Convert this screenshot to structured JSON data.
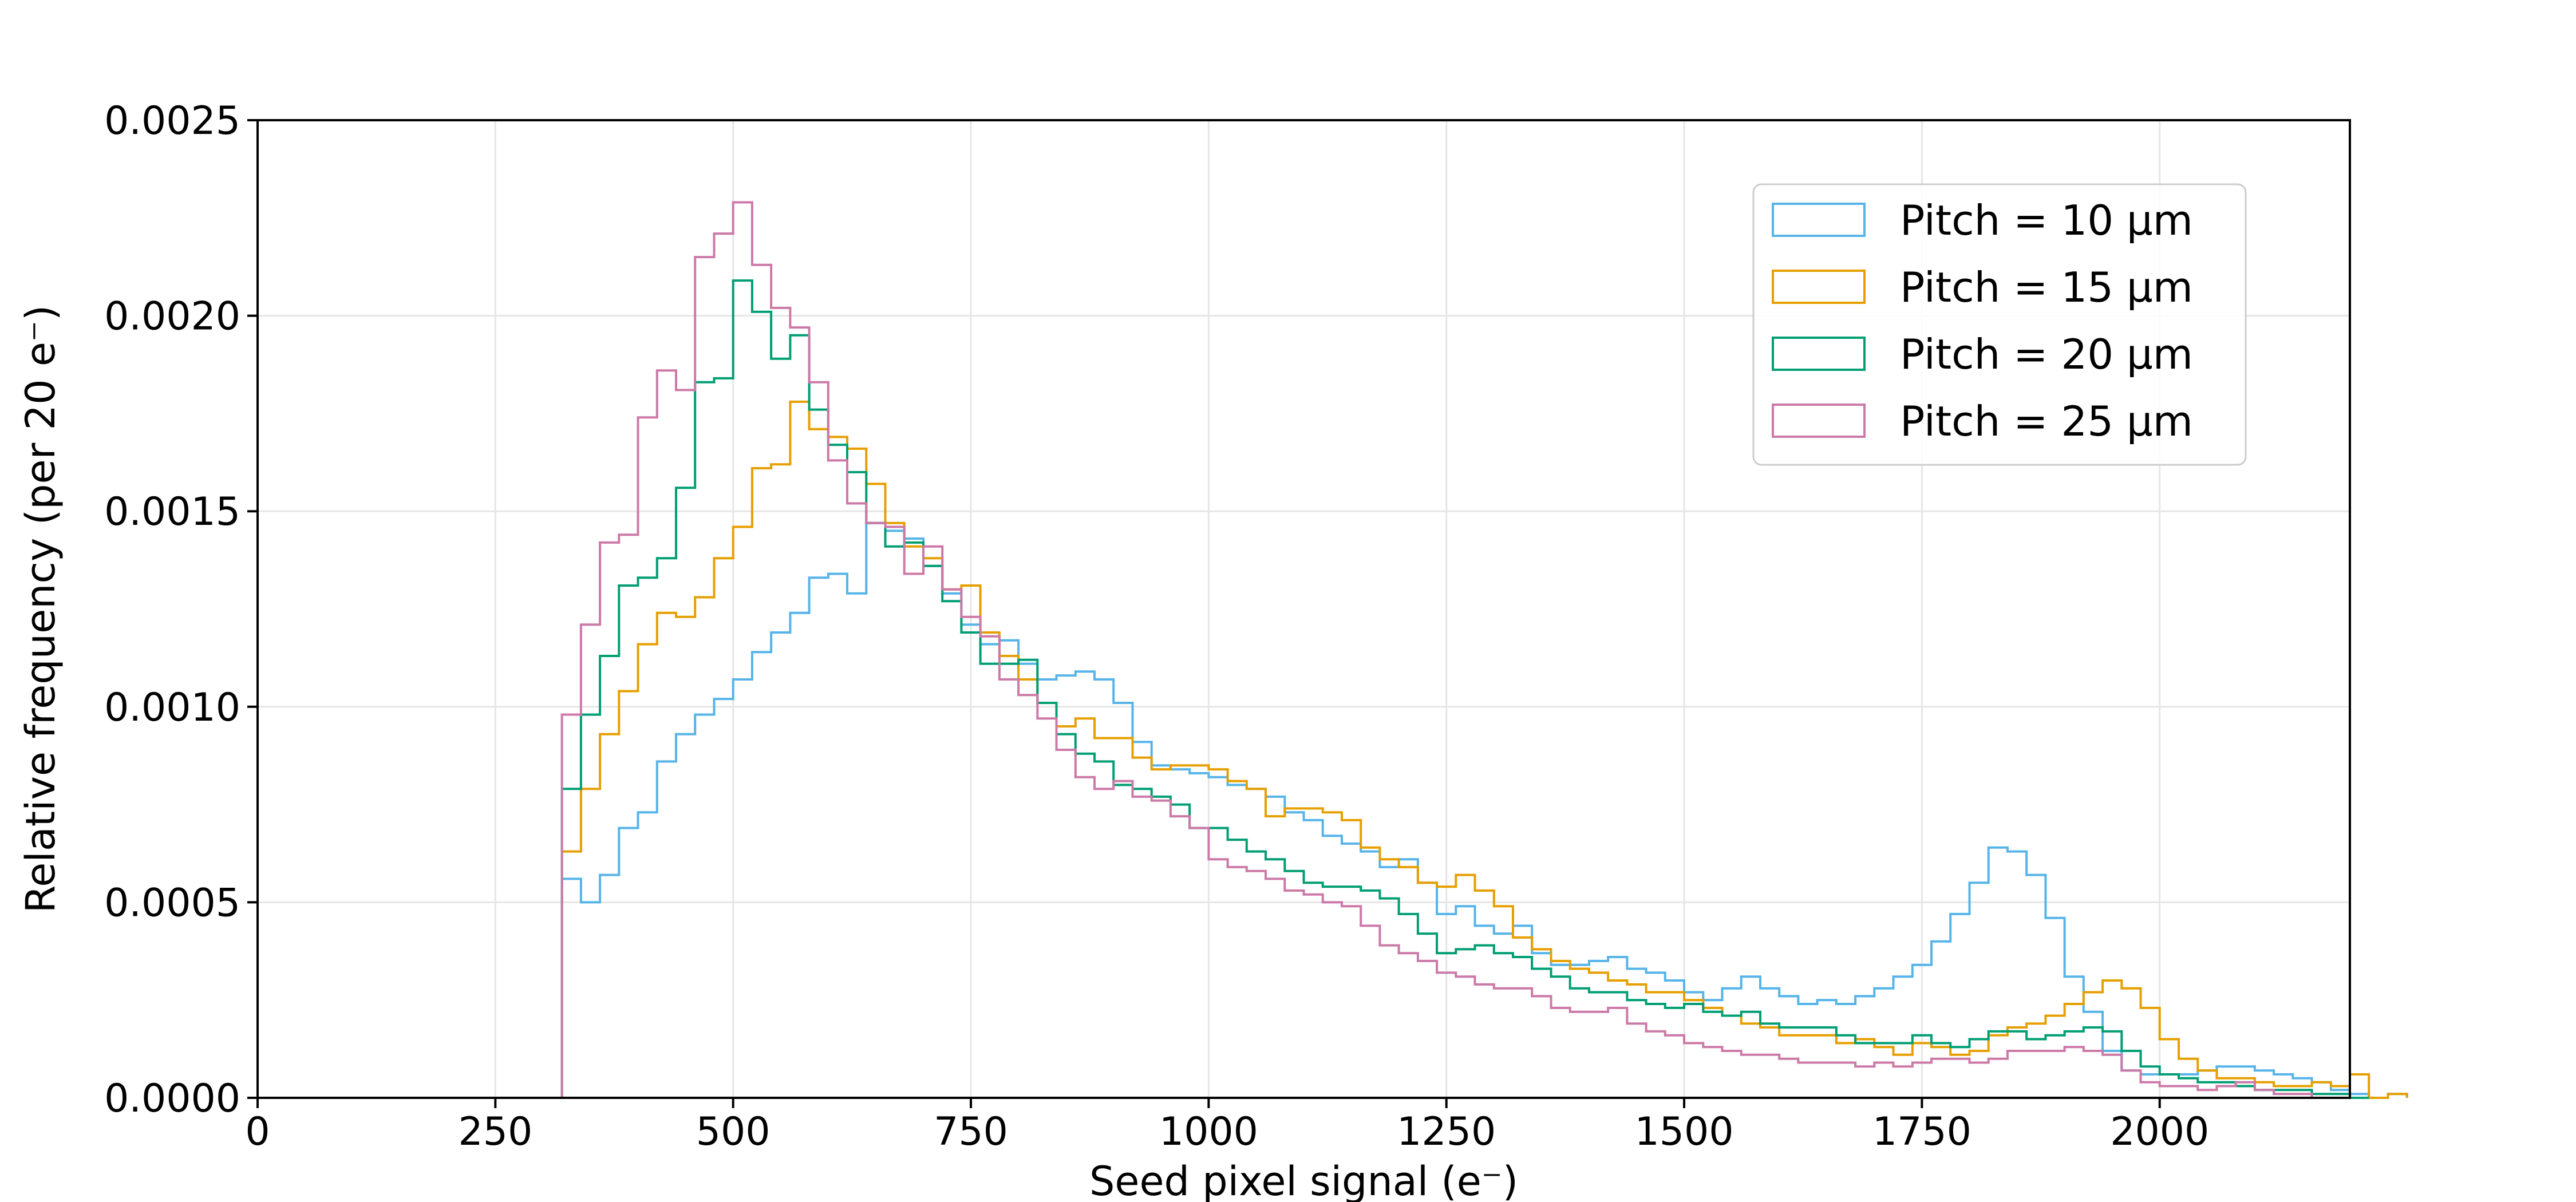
{
  "chart_data": {
    "type": "histogram",
    "xlabel": "Seed pixel signal (e⁻)",
    "ylabel": "Relative frequency (per 20 e⁻)",
    "xlim": [
      0,
      2200
    ],
    "ylim": [
      0,
      0.0025
    ],
    "xticks": [
      "0",
      "250",
      "500",
      "750",
      "1000",
      "1250",
      "1500",
      "1750",
      "2000"
    ],
    "yticks": [
      "0.0000",
      "0.0005",
      "0.0010",
      "0.0015",
      "0.0020",
      "0.0025"
    ],
    "grid": true,
    "legend_position": "top-right",
    "bin_width": 20,
    "bin_start": 320,
    "series": [
      {
        "name": "Pitch = 10 µm",
        "color": "#56b4e9",
        "values": [
          0.00056,
          0.0005,
          0.00057,
          0.00069,
          0.00073,
          0.00086,
          0.00093,
          0.00098,
          0.00102,
          0.00107,
          0.00114,
          0.00119,
          0.00124,
          0.00133,
          0.00134,
          0.00129,
          0.00147,
          0.00145,
          0.00143,
          0.00136,
          0.00129,
          0.00121,
          0.00116,
          0.00117,
          0.00111,
          0.00107,
          0.00108,
          0.00109,
          0.00107,
          0.00101,
          0.00091,
          0.00085,
          0.00084,
          0.00083,
          0.00082,
          0.0008,
          0.00079,
          0.00077,
          0.00073,
          0.00071,
          0.00067,
          0.00065,
          0.00063,
          0.00059,
          0.00061,
          0.00055,
          0.00047,
          0.00049,
          0.00044,
          0.00042,
          0.00044,
          0.00037,
          0.00034,
          0.00034,
          0.00035,
          0.00036,
          0.00033,
          0.00032,
          0.0003,
          0.00027,
          0.00025,
          0.00028,
          0.00031,
          0.00028,
          0.00026,
          0.00024,
          0.00025,
          0.00024,
          0.00026,
          0.00028,
          0.00031,
          0.00034,
          0.0004,
          0.00047,
          0.00055,
          0.00064,
          0.00063,
          0.00057,
          0.00046,
          0.00031,
          0.00022,
          0.00012,
          7e-05,
          6e-05,
          6e-05,
          6e-05,
          7e-05,
          8e-05,
          8e-05,
          7e-05,
          6e-05,
          5e-05,
          4e-05,
          2e-05,
          1e-05,
          0.0
        ],
        "tail": 1e-05
      },
      {
        "name": "Pitch = 15 µm",
        "color": "#e69f00",
        "values": [
          0.00063,
          0.00079,
          0.00093,
          0.00104,
          0.00116,
          0.00124,
          0.00123,
          0.00128,
          0.00138,
          0.00146,
          0.00161,
          0.00162,
          0.00178,
          0.00171,
          0.00169,
          0.00166,
          0.00157,
          0.00147,
          0.00141,
          0.00138,
          0.0013,
          0.00131,
          0.00119,
          0.00113,
          0.00107,
          0.00101,
          0.00095,
          0.00097,
          0.00092,
          0.00092,
          0.00087,
          0.00084,
          0.00085,
          0.00085,
          0.00084,
          0.00081,
          0.00079,
          0.00072,
          0.00074,
          0.00074,
          0.00073,
          0.00071,
          0.00064,
          0.00061,
          0.00059,
          0.00055,
          0.00054,
          0.00057,
          0.00053,
          0.00049,
          0.00041,
          0.00038,
          0.00035,
          0.00033,
          0.00032,
          0.0003,
          0.00029,
          0.00027,
          0.00027,
          0.00025,
          0.00023,
          0.00021,
          0.00019,
          0.00018,
          0.00016,
          0.00016,
          0.00016,
          0.00014,
          0.00015,
          0.00013,
          0.00011,
          0.00014,
          0.00013,
          0.00011,
          0.00012,
          0.00016,
          0.00018,
          0.00019,
          0.00021,
          0.00024,
          0.00027,
          0.0003,
          0.00028,
          0.00023,
          0.00015,
          0.0001,
          7e-05,
          5e-05,
          5e-05,
          4e-05,
          3e-05,
          3e-05,
          4e-05,
          3e-05,
          6e-05,
          0.0
        ],
        "tail": 1e-05
      },
      {
        "name": "Pitch = 20 µm",
        "color": "#009e73",
        "values": [
          0.00079,
          0.00098,
          0.00113,
          0.00131,
          0.00133,
          0.00138,
          0.00156,
          0.00183,
          0.00184,
          0.00209,
          0.00201,
          0.00189,
          0.00195,
          0.00176,
          0.00167,
          0.0016,
          0.00147,
          0.00141,
          0.00142,
          0.00136,
          0.00127,
          0.00119,
          0.00111,
          0.00111,
          0.00112,
          0.00101,
          0.00093,
          0.00088,
          0.00086,
          0.0008,
          0.00079,
          0.00077,
          0.00075,
          0.00069,
          0.00069,
          0.00066,
          0.00063,
          0.00061,
          0.00058,
          0.00055,
          0.00054,
          0.00054,
          0.00053,
          0.00051,
          0.00047,
          0.00042,
          0.00037,
          0.00038,
          0.00039,
          0.00037,
          0.00036,
          0.00033,
          0.00031,
          0.00028,
          0.00027,
          0.00027,
          0.00025,
          0.00024,
          0.00023,
          0.00024,
          0.00022,
          0.00021,
          0.00022,
          0.00019,
          0.00018,
          0.00018,
          0.00018,
          0.00016,
          0.00014,
          0.00014,
          0.00014,
          0.00016,
          0.00014,
          0.00013,
          0.00015,
          0.00017,
          0.00017,
          0.00015,
          0.00016,
          0.00017,
          0.00018,
          0.00017,
          0.00012,
          8e-05,
          6e-05,
          5e-05,
          4e-05,
          4e-05,
          3e-05,
          2e-05,
          2e-05,
          2e-05,
          1e-05,
          1e-05,
          0.0
        ],
        "tail": 0.0
      },
      {
        "name": "Pitch = 25 µm",
        "color": "#cc79a7",
        "values": [
          0.00098,
          0.00121,
          0.00142,
          0.00144,
          0.00174,
          0.00186,
          0.00181,
          0.00215,
          0.00221,
          0.00229,
          0.00213,
          0.00202,
          0.00197,
          0.00183,
          0.00163,
          0.00152,
          0.00147,
          0.00146,
          0.00134,
          0.00141,
          0.0013,
          0.00123,
          0.00118,
          0.00107,
          0.00103,
          0.00097,
          0.00089,
          0.00082,
          0.00079,
          0.00081,
          0.00077,
          0.00076,
          0.00072,
          0.00069,
          0.00061,
          0.00059,
          0.00058,
          0.00056,
          0.00053,
          0.00052,
          0.0005,
          0.00049,
          0.00044,
          0.00039,
          0.00037,
          0.00035,
          0.00032,
          0.00031,
          0.00029,
          0.00028,
          0.00028,
          0.00026,
          0.00023,
          0.00022,
          0.00022,
          0.00023,
          0.00019,
          0.00017,
          0.00016,
          0.00014,
          0.00013,
          0.00012,
          0.00011,
          0.00011,
          0.0001,
          9e-05,
          9e-05,
          9e-05,
          8e-05,
          9e-05,
          8e-05,
          9e-05,
          0.0001,
          0.0001,
          9e-05,
          0.0001,
          0.00012,
          0.00012,
          0.00012,
          0.00013,
          0.00012,
          0.00011,
          7e-05,
          4e-05,
          3e-05,
          3e-05,
          2e-05,
          3e-05,
          4e-05,
          2e-05,
          1e-05,
          1e-05,
          0.0,
          0.0
        ],
        "tail": 0.0
      }
    ]
  }
}
